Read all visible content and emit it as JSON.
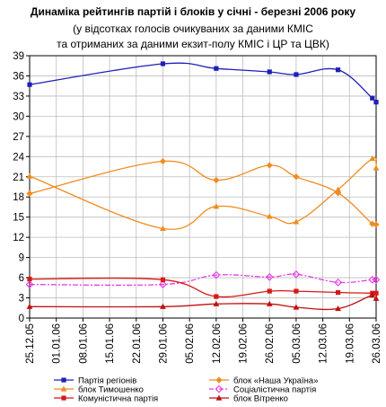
{
  "chart_data": {
    "type": "line",
    "title": "Динаміка рейтингів партій і блоків  у січні - березні 2006 року",
    "subtitle_lines": [
      "(у відсотках голосів очикуваних за даними КМІС",
      "та отриманих за даними екзит-полу КМІС і ЦР та ЦВК)"
    ],
    "x_ticks": [
      "25.12.05",
      "01.01.06",
      "08.01.06",
      "15.01.06",
      "22.01.06",
      "29.01.06",
      "05.02.06",
      "12.02.06",
      "19.02.06",
      "26.02.06",
      "05.03.06",
      "12.03.06",
      "19.03.06",
      "26.03.06"
    ],
    "y_ticks": [
      0,
      3,
      6,
      9,
      12,
      15,
      18,
      21,
      24,
      27,
      30,
      33,
      36,
      39
    ],
    "xlim": [
      "25.12.05",
      "26.03.06"
    ],
    "ylim": [
      0,
      39
    ],
    "grid": true,
    "series": [
      {
        "name": "Партія регіонів",
        "color": "#1f1fb8",
        "marker": "square",
        "points": [
          [
            "25.12.05",
            34.7
          ],
          [
            "29.01.06",
            37.8
          ],
          [
            "12.02.06",
            37.1
          ],
          [
            "26.02.06",
            36.6
          ],
          [
            "05.03.06",
            36.2
          ],
          [
            "16.03.06",
            36.9
          ],
          [
            "25.03.06",
            32.7
          ],
          [
            "26.03.06",
            32.1
          ]
        ]
      },
      {
        "name": "блок «Наша Україна»",
        "color": "#f08c1e",
        "marker": "diamond",
        "points": [
          [
            "25.12.05",
            18.5
          ],
          [
            "29.01.06",
            23.3
          ],
          [
            "12.02.06",
            20.5
          ],
          [
            "26.02.06",
            22.7
          ],
          [
            "05.03.06",
            21.0
          ],
          [
            "16.03.06",
            18.6
          ],
          [
            "25.03.06",
            14.0
          ],
          [
            "26.03.06",
            13.9
          ]
        ]
      },
      {
        "name": "блок Тимошенко",
        "color": "#f08c1e",
        "marker": "triangle",
        "points": [
          [
            "25.12.05",
            21.1
          ],
          [
            "29.01.06",
            13.3
          ],
          [
            "12.02.06",
            16.6
          ],
          [
            "26.02.06",
            15.1
          ],
          [
            "05.03.06",
            14.3
          ],
          [
            "16.03.06",
            19.1
          ],
          [
            "25.03.06",
            23.7
          ],
          [
            "26.03.06",
            22.3
          ]
        ]
      },
      {
        "name": "Соціалістична партія",
        "color": "#e83ae8",
        "marker": "diamond-open",
        "points": [
          [
            "25.12.05",
            5.0
          ],
          [
            "29.01.06",
            5.0
          ],
          [
            "12.02.06",
            6.4
          ],
          [
            "26.02.06",
            6.1
          ],
          [
            "05.03.06",
            6.5
          ],
          [
            "16.03.06",
            5.3
          ],
          [
            "25.03.06",
            5.7
          ],
          [
            "26.03.06",
            5.7
          ]
        ]
      },
      {
        "name": "Комуністична партія",
        "color": "#d81818",
        "marker": "square",
        "points": [
          [
            "25.12.05",
            5.8
          ],
          [
            "29.01.06",
            5.7
          ],
          [
            "12.02.06",
            3.2
          ],
          [
            "26.02.06",
            4.0
          ],
          [
            "05.03.06",
            4.0
          ],
          [
            "16.03.06",
            3.8
          ],
          [
            "25.03.06",
            3.7
          ],
          [
            "26.03.06",
            3.7
          ]
        ]
      },
      {
        "name": "блок Вітренко",
        "color": "#c01010",
        "marker": "triangle",
        "points": [
          [
            "25.12.05",
            1.7
          ],
          [
            "29.01.06",
            1.7
          ],
          [
            "12.02.06",
            2.1
          ],
          [
            "26.02.06",
            2.1
          ],
          [
            "05.03.06",
            1.6
          ],
          [
            "16.03.06",
            1.4
          ],
          [
            "25.03.06",
            3.4
          ],
          [
            "26.03.06",
            2.9
          ]
        ]
      }
    ]
  }
}
